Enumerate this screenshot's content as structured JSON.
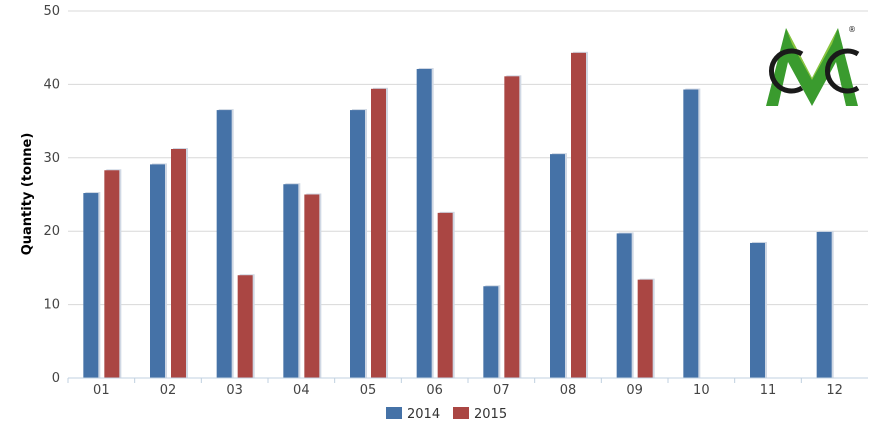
{
  "chart_data": {
    "type": "bar",
    "categories": [
      "01",
      "02",
      "03",
      "04",
      "05",
      "06",
      "07",
      "08",
      "09",
      "10",
      "11",
      "12"
    ],
    "series": [
      {
        "name": "2014",
        "color": "#4572a7",
        "values": [
          25.2,
          29.1,
          36.5,
          26.4,
          36.5,
          42.1,
          12.5,
          30.5,
          19.7,
          39.3,
          18.4,
          19.9
        ]
      },
      {
        "name": "2015",
        "color": "#aa4643",
        "values": [
          28.3,
          31.2,
          14.0,
          25.0,
          39.4,
          22.5,
          41.1,
          44.3,
          13.4,
          null,
          null,
          null
        ]
      }
    ],
    "title": "",
    "xlabel": "",
    "ylabel": "Quantity (tonne)",
    "ylim": [
      0,
      50
    ],
    "yticks": [
      0,
      10,
      20,
      30,
      40,
      50
    ],
    "grid": true,
    "legend_position": "bottom-center"
  },
  "logo": {
    "letters": "CMC",
    "registered": "®",
    "colors": {
      "dark": "#1a1a1a",
      "green": "#3a9b2e",
      "light_green": "#8cc63f"
    }
  }
}
